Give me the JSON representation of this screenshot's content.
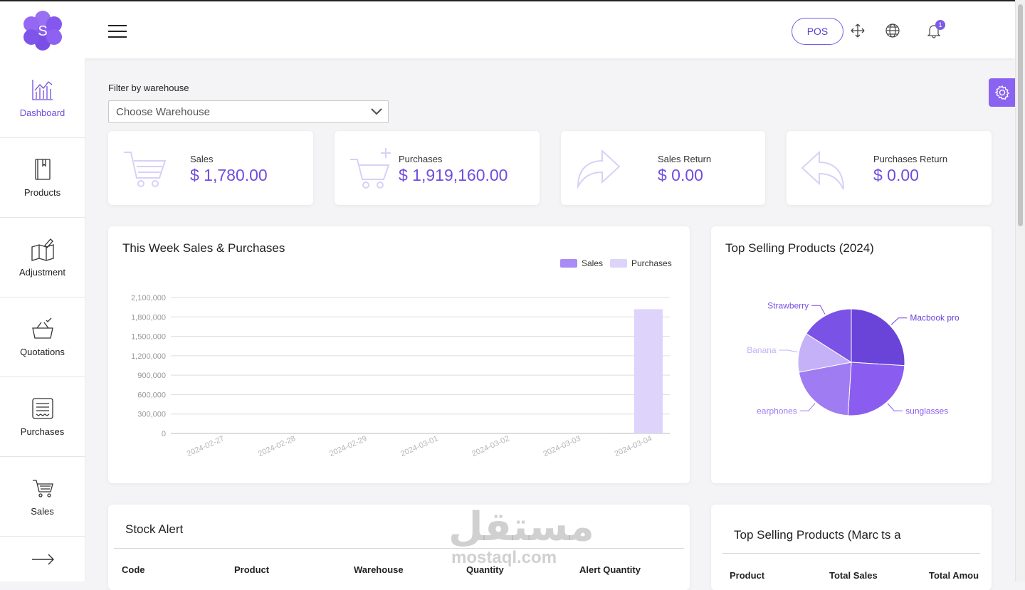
{
  "header": {
    "logo_letter": "S",
    "pos_label": "POS",
    "notification_count": "1"
  },
  "sidebar": {
    "items": [
      {
        "label": "Dashboard",
        "icon": "chart-icon"
      },
      {
        "label": "Products",
        "icon": "book-icon"
      },
      {
        "label": "Adjustment",
        "icon": "map-pen-icon"
      },
      {
        "label": "Quotations",
        "icon": "basket-check-icon"
      },
      {
        "label": "Purchases",
        "icon": "receipt-icon"
      },
      {
        "label": "Sales",
        "icon": "cart-icon"
      }
    ]
  },
  "filter": {
    "label": "Filter by warehouse",
    "placeholder": "Choose Warehouse"
  },
  "stats": [
    {
      "label": "Sales",
      "value": "$ 1,780.00",
      "icon": "cart-icon"
    },
    {
      "label": "Purchases",
      "value": "$ 1,919,160.00",
      "icon": "cart-plus-icon"
    },
    {
      "label": "Sales Return",
      "value": "$ 0.00",
      "icon": "forward-arrow-icon"
    },
    {
      "label": "Purchases Return",
      "value": "$ 0.00",
      "icon": "reply-arrow-icon"
    }
  ],
  "weekly_chart": {
    "title": "This Week Sales & Purchases",
    "legend_sales": "Sales",
    "legend_purchases": "Purchases"
  },
  "pie_chart": {
    "title": "Top Selling Products (2024)"
  },
  "stock_alert": {
    "title": "Stock Alert",
    "columns": [
      "Code",
      "Product",
      "Warehouse",
      "Quantity",
      "Alert Quantity"
    ]
  },
  "top_month": {
    "title": "Top Selling Products (Marc",
    "title_tail": "ts a",
    "columns": [
      "Product",
      "Total Sales",
      "Total Amou"
    ]
  },
  "watermark": {
    "arabic": "مستقل",
    "latin": "mostaql.com"
  },
  "colors": {
    "accent": "#6f4ce0",
    "sales_bar": "#a98cf5",
    "purchases_bar": "#ddd3fb"
  },
  "chart_data": [
    {
      "type": "bar",
      "title": "This Week Sales & Purchases",
      "categories": [
        "2024-02-27",
        "2024-02-28",
        "2024-02-29",
        "2024-03-01",
        "2024-03-02",
        "2024-03-03",
        "2024-03-04"
      ],
      "series": [
        {
          "name": "Sales",
          "values": [
            0,
            0,
            0,
            0,
            0,
            0,
            1780
          ]
        },
        {
          "name": "Purchases",
          "values": [
            0,
            0,
            0,
            0,
            0,
            0,
            1919160
          ]
        }
      ],
      "y_ticks": [
        "0",
        "300,000",
        "600,000",
        "900,000",
        "1,200,000",
        "1,500,000",
        "1,800,000",
        "2,100,000"
      ],
      "ylim": [
        0,
        2100000
      ],
      "grid": true,
      "legend": "top-right"
    },
    {
      "type": "pie",
      "title": "Top Selling Products (2024)",
      "labels": [
        "Macbook pro",
        "sunglasses",
        "earphones",
        "Banana",
        "Strawberry"
      ],
      "values": [
        26,
        25,
        21,
        12,
        16
      ],
      "colors": [
        "#6a43d8",
        "#8a5cf0",
        "#a07cf2",
        "#c4b1f7",
        "#7b52e6"
      ]
    }
  ]
}
